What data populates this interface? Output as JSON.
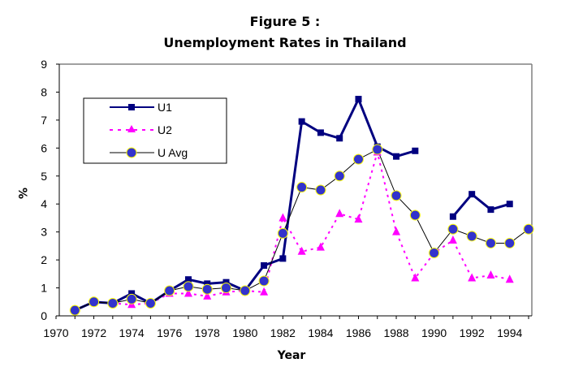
{
  "title_line1": "Figure 5 :",
  "title_line2": "Unemployment Rates in Thailand",
  "chart_data": {
    "type": "line",
    "title": "Figure 5 : Unemployment Rates in Thailand",
    "xlabel": "Year",
    "ylabel": "%",
    "ylim": [
      0,
      9
    ],
    "xlim": [
      1970,
      1995
    ],
    "y_ticks": [
      0,
      1,
      2,
      3,
      4,
      5,
      6,
      7,
      8,
      9
    ],
    "x_ticks": [
      1970,
      1972,
      1974,
      1976,
      1978,
      1980,
      1982,
      1984,
      1986,
      1988,
      1990,
      1992,
      1994
    ],
    "grid": false,
    "legend_position": "upper-left (inside plot)",
    "x": [
      1971,
      1972,
      1973,
      1974,
      1975,
      1976,
      1977,
      1978,
      1979,
      1980,
      1981,
      1982,
      1983,
      1984,
      1985,
      1986,
      1987,
      1988,
      1989,
      1990,
      1991,
      1992,
      1993,
      1994,
      1995
    ],
    "series": [
      {
        "name": "U1",
        "color": "#000080",
        "style": "solid thick, square markers",
        "values": [
          0.2,
          0.5,
          0.45,
          0.8,
          0.45,
          0.9,
          1.3,
          1.15,
          1.2,
          0.9,
          1.8,
          2.05,
          6.95,
          6.55,
          6.35,
          7.75,
          6.05,
          5.7,
          5.9,
          null,
          3.55,
          4.35,
          3.8,
          4.0,
          null
        ]
      },
      {
        "name": "U2",
        "color": "#ff00ff",
        "style": "dotted, triangle markers",
        "values": [
          0.2,
          0.5,
          0.45,
          0.4,
          0.45,
          0.8,
          0.8,
          0.7,
          0.85,
          0.9,
          0.85,
          3.5,
          2.3,
          2.45,
          3.65,
          3.45,
          5.85,
          3.0,
          1.35,
          2.25,
          2.7,
          1.35,
          1.45,
          1.3,
          null
        ]
      },
      {
        "name": "U Avg",
        "color": "#3333cc",
        "line_color": "#000000",
        "marker_edge": "#ffff00",
        "style": "thin black line, round markers",
        "values": [
          0.2,
          0.5,
          0.45,
          0.6,
          0.45,
          0.9,
          1.05,
          0.95,
          1.0,
          0.9,
          1.25,
          2.95,
          4.6,
          4.5,
          5.0,
          5.6,
          5.95,
          4.3,
          3.6,
          2.25,
          3.1,
          2.85,
          2.6,
          2.6,
          3.1
        ]
      }
    ]
  }
}
